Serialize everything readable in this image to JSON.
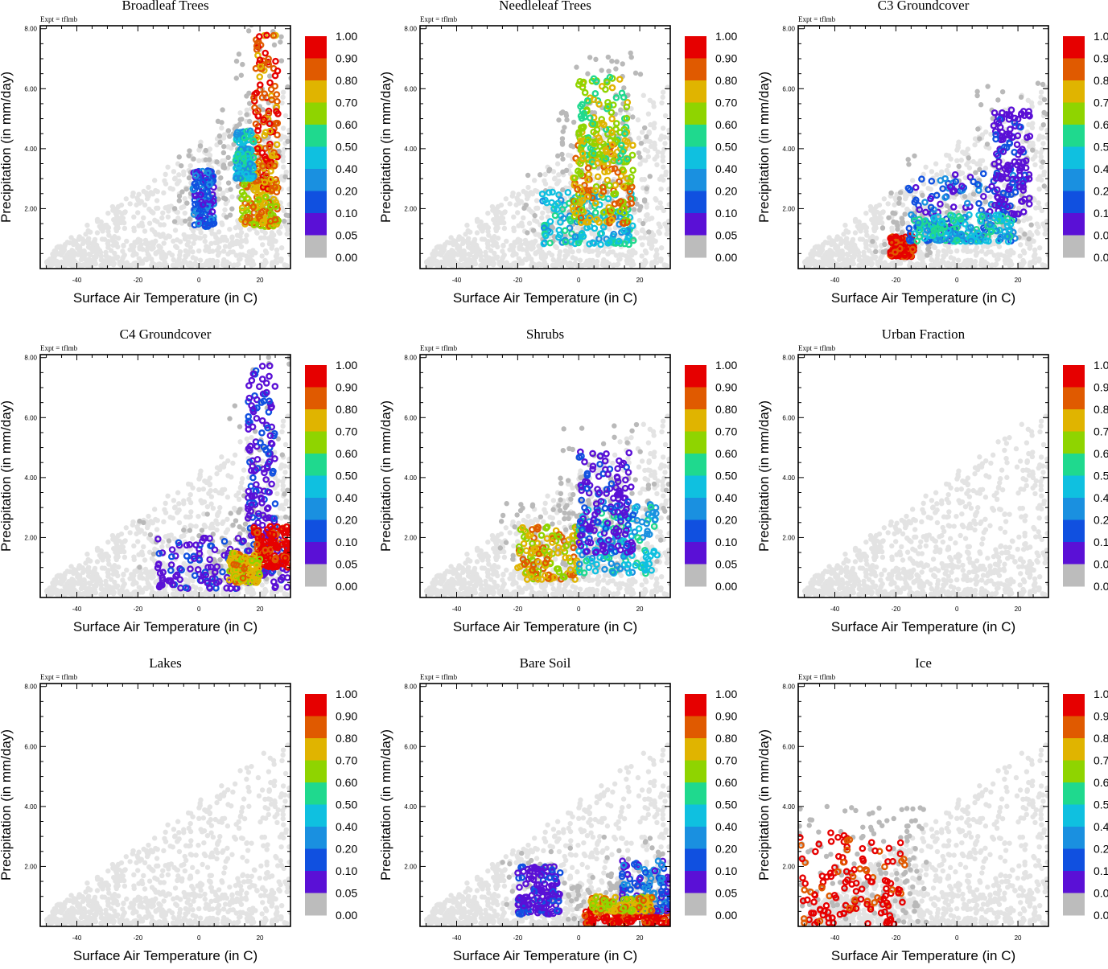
{
  "figure": {
    "expt_label": "Expt = tflmb",
    "xlabel": "Surface Air Temperature (in C)",
    "ylabel": "Precipitation (in mm/day)",
    "colorbar": {
      "labels": [
        "1.00",
        "0.90",
        "0.80",
        "0.70",
        "0.60",
        "0.50",
        "0.40",
        "0.20",
        "0.10",
        "0.05",
        "0.00"
      ],
      "colors": [
        "#e60000",
        "#e05a00",
        "#e0b400",
        "#8fd400",
        "#1fd98e",
        "#0fc0e0",
        "#1a90e0",
        "#1050e0",
        "#5a10d6",
        "#bcbcbc"
      ]
    }
  },
  "chart_data": [
    {
      "type": "scatter",
      "title": "Broadleaf Trees",
      "xlabel": "Surface Air Temperature (in C)",
      "ylabel": "Precipitation (in mm/day)",
      "xlim": [
        -52,
        30
      ],
      "ylim": [
        0,
        8.1
      ],
      "xticks": [
        "-40",
        "-20",
        "0",
        "20"
      ],
      "yticks": [
        "2.00",
        "4.00",
        "6.00",
        "8.00"
      ],
      "legend_position": "right",
      "clusters": [
        {
          "x": [
            -2,
            5
          ],
          "y": [
            1.4,
            3.3
          ],
          "level": "blue"
        },
        {
          "x": [
            14,
            26
          ],
          "y": [
            1.4,
            3.0
          ],
          "level": "yellow"
        },
        {
          "x": [
            18,
            26
          ],
          "y": [
            2.6,
            7.8
          ],
          "level": "orange"
        },
        {
          "x": [
            12,
            18
          ],
          "y": [
            3.0,
            4.6
          ],
          "level": "cyan"
        }
      ]
    },
    {
      "type": "scatter",
      "title": "Needleleaf Trees",
      "xlabel": "Surface Air Temperature (in C)",
      "ylabel": "Precipitation (in mm/day)",
      "xlim": [
        -52,
        30
      ],
      "ylim": [
        0,
        8.1
      ],
      "xticks": [
        "-40",
        "-20",
        "0",
        "20"
      ],
      "yticks": [
        "2.00",
        "4.00",
        "6.00",
        "8.00"
      ],
      "legend_position": "right",
      "clusters": [
        {
          "x": [
            -12,
            18
          ],
          "y": [
            0.8,
            2.6
          ],
          "level": "cyan"
        },
        {
          "x": [
            -2,
            18
          ],
          "y": [
            1.5,
            4.5
          ],
          "level": "yellow"
        },
        {
          "x": [
            0,
            16
          ],
          "y": [
            3.5,
            6.4
          ],
          "level": "lime"
        }
      ]
    },
    {
      "type": "scatter",
      "title": "C3 Groundcover",
      "xlabel": "Surface Air Temperature (in C)",
      "ylabel": "Precipitation (in mm/day)",
      "xlim": [
        -52,
        30
      ],
      "ylim": [
        0,
        8.1
      ],
      "xticks": [
        "-40",
        "-20",
        "0",
        "20"
      ],
      "yticks": [
        "2.00",
        "4.00",
        "6.00",
        "8.00"
      ],
      "legend_position": "right",
      "clusters": [
        {
          "x": [
            -22,
            -14
          ],
          "y": [
            0.4,
            1.1
          ],
          "level": "red"
        },
        {
          "x": [
            -16,
            20
          ],
          "y": [
            0.9,
            3.2
          ],
          "level": "blue"
        },
        {
          "x": [
            12,
            24
          ],
          "y": [
            1.8,
            5.4
          ],
          "level": "purple"
        },
        {
          "x": [
            -14,
            18
          ],
          "y": [
            0.9,
            1.8
          ],
          "level": "cyan"
        }
      ]
    },
    {
      "type": "scatter",
      "title": "C4 Groundcover",
      "xlabel": "Surface Air Temperature (in C)",
      "ylabel": "Precipitation (in mm/day)",
      "xlim": [
        -52,
        30
      ],
      "ylim": [
        0,
        8.1
      ],
      "xticks": [
        "-40",
        "-20",
        "0",
        "20"
      ],
      "yticks": [
        "2.00",
        "4.00",
        "6.00",
        "8.00"
      ],
      "legend_position": "right",
      "clusters": [
        {
          "x": [
            -14,
            30
          ],
          "y": [
            0.3,
            2.0
          ],
          "level": "purple"
        },
        {
          "x": [
            16,
            25
          ],
          "y": [
            2.0,
            7.8
          ],
          "level": "purple"
        },
        {
          "x": [
            18,
            30
          ],
          "y": [
            1.0,
            2.4
          ],
          "level": "red"
        },
        {
          "x": [
            10,
            20
          ],
          "y": [
            0.5,
            1.5
          ],
          "level": "yellow"
        }
      ]
    },
    {
      "type": "scatter",
      "title": "Shrubs",
      "xlabel": "Surface Air Temperature (in C)",
      "ylabel": "Precipitation (in mm/day)",
      "xlim": [
        -52,
        30
      ],
      "ylim": [
        0,
        8.1
      ],
      "xticks": [
        "-40",
        "-20",
        "0",
        "20"
      ],
      "yticks": [
        "2.00",
        "4.00",
        "6.00",
        "8.00"
      ],
      "legend_position": "right",
      "clusters": [
        {
          "x": [
            -20,
            0
          ],
          "y": [
            0.6,
            2.4
          ],
          "level": "yellow"
        },
        {
          "x": [
            0,
            26
          ],
          "y": [
            0.8,
            3.2
          ],
          "level": "cyan"
        },
        {
          "x": [
            0,
            18
          ],
          "y": [
            1.5,
            5.0
          ],
          "level": "purple"
        }
      ]
    },
    {
      "type": "scatter",
      "title": "Urban Fraction",
      "xlabel": "Surface Air Temperature (in C)",
      "ylabel": "Precipitation (in mm/day)",
      "xlim": [
        -52,
        30
      ],
      "ylim": [
        0,
        8.1
      ],
      "xticks": [
        "-40",
        "-20",
        "0",
        "20"
      ],
      "yticks": [
        "2.00",
        "4.00",
        "6.00",
        "8.00"
      ],
      "legend_position": "right",
      "clusters": []
    },
    {
      "type": "scatter",
      "title": "Lakes",
      "xlabel": "Surface Air Temperature (in C)",
      "ylabel": "Precipitation (in mm/day)",
      "xlim": [
        -52,
        30
      ],
      "ylim": [
        0,
        8.1
      ],
      "xticks": [
        "-40",
        "-20",
        "0",
        "20"
      ],
      "yticks": [
        "2.00",
        "4.00",
        "6.00",
        "8.00"
      ],
      "legend_position": "right",
      "clusters": []
    },
    {
      "type": "scatter",
      "title": "Bare Soil",
      "xlabel": "Surface Air Temperature (in C)",
      "ylabel": "Precipitation (in mm/day)",
      "xlim": [
        -52,
        30
      ],
      "ylim": [
        0,
        8.1
      ],
      "xticks": [
        "-40",
        "-20",
        "0",
        "20"
      ],
      "yticks": [
        "2.00",
        "4.00",
        "6.00",
        "8.00"
      ],
      "legend_position": "right",
      "clusters": [
        {
          "x": [
            -20,
            -6
          ],
          "y": [
            0.4,
            2.0
          ],
          "level": "purple"
        },
        {
          "x": [
            2,
            30
          ],
          "y": [
            0.1,
            0.6
          ],
          "level": "red"
        },
        {
          "x": [
            14,
            30
          ],
          "y": [
            0.5,
            2.2
          ],
          "level": "blue"
        },
        {
          "x": [
            4,
            24
          ],
          "y": [
            0.5,
            1.0
          ],
          "level": "yellow"
        }
      ]
    },
    {
      "type": "scatter",
      "title": "Ice",
      "xlabel": "Surface Air Temperature (in C)",
      "ylabel": "Precipitation (in mm/day)",
      "xlim": [
        -52,
        30
      ],
      "ylim": [
        0,
        8.1
      ],
      "xticks": [
        "-40",
        "-20",
        "0",
        "20"
      ],
      "yticks": [
        "2.00",
        "4.00",
        "6.00",
        "8.00"
      ],
      "legend_position": "right",
      "clusters": [
        {
          "x": [
            -52,
            -16
          ],
          "y": [
            0.05,
            3.2
          ],
          "level": "red"
        }
      ]
    }
  ]
}
